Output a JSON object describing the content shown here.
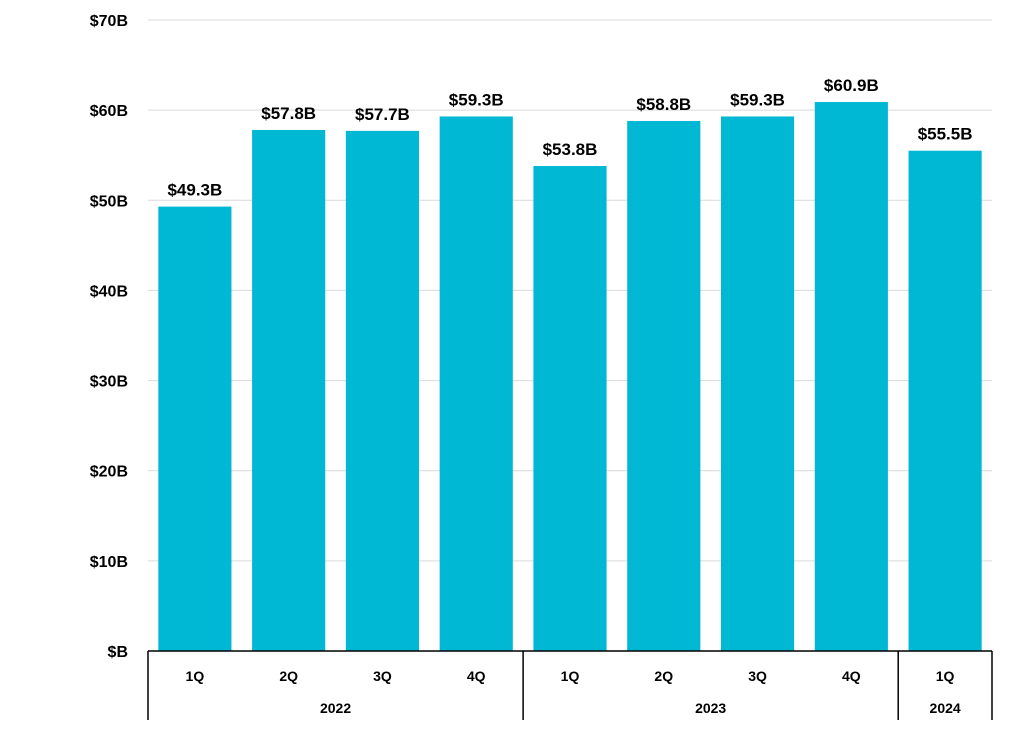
{
  "chart_data": {
    "type": "bar",
    "categories": [
      "1Q",
      "2Q",
      "3Q",
      "4Q",
      "1Q",
      "2Q",
      "3Q",
      "4Q",
      "1Q"
    ],
    "groups": [
      {
        "label": "2022",
        "count": 4
      },
      {
        "label": "2023",
        "count": 4
      },
      {
        "label": "2024",
        "count": 1
      }
    ],
    "values": [
      49.3,
      57.8,
      57.7,
      59.3,
      53.8,
      58.8,
      59.3,
      60.9,
      55.5
    ],
    "data_labels": [
      "$49.3B",
      "$57.8B",
      "$57.7B",
      "$59.3B",
      "$53.8B",
      "$58.8B",
      "$59.3B",
      "$60.9B",
      "$55.5B"
    ],
    "y_ticks": [
      0,
      10,
      20,
      30,
      40,
      50,
      60,
      70
    ],
    "y_tick_labels": [
      "$B",
      "$10B",
      "$20B",
      "$30B",
      "$40B",
      "$50B",
      "$60B",
      "$70B"
    ],
    "ylim": [
      0,
      70
    ],
    "grid": true,
    "legend": "none",
    "bar_color": "#00B7D4",
    "title": "",
    "xlabel": "",
    "ylabel": ""
  }
}
